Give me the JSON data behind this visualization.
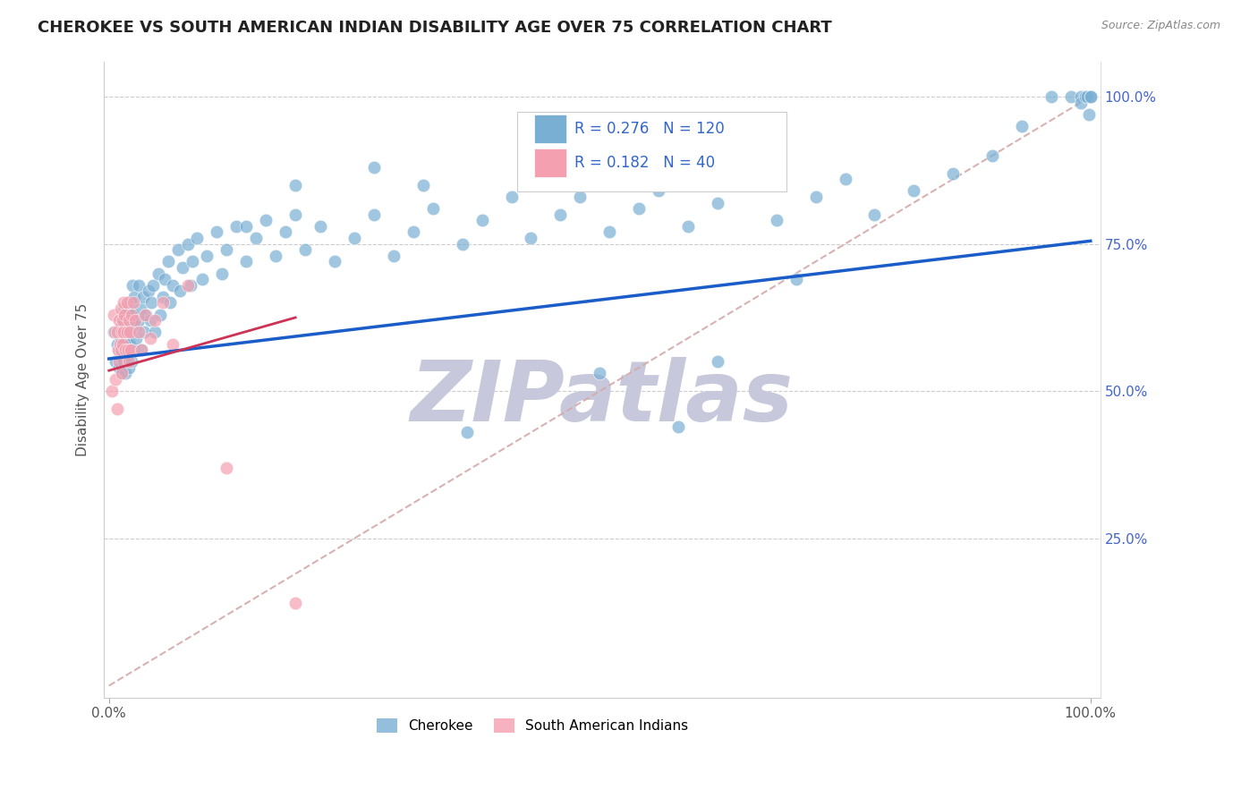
{
  "title": "CHEROKEE VS SOUTH AMERICAN INDIAN DISABILITY AGE OVER 75 CORRELATION CHART",
  "source": "Source: ZipAtlas.com",
  "ylabel": "Disability Age Over 75",
  "legend_cherokee_R": "0.276",
  "legend_cherokee_N": "120",
  "legend_sam_R": "0.182",
  "legend_sam_N": "40",
  "cherokee_color": "#7AAFD4",
  "sam_color": "#F4A0B0",
  "cherokee_line_color": "#1A5DC8",
  "sam_line_color": "#CC3355",
  "diagonal_color": "#D4AAAA",
  "background_color": "#FFFFFF",
  "watermark_text": "ZIPatlas",
  "watermark_color": "#C8C8DC",
  "cherokee_x": [
    0.005,
    0.007,
    0.008,
    0.01,
    0.01,
    0.012,
    0.012,
    0.013,
    0.013,
    0.014,
    0.015,
    0.015,
    0.015,
    0.016,
    0.016,
    0.017,
    0.017,
    0.018,
    0.018,
    0.018,
    0.019,
    0.02,
    0.02,
    0.02,
    0.021,
    0.022,
    0.022,
    0.023,
    0.023,
    0.024,
    0.025,
    0.025,
    0.026,
    0.027,
    0.028,
    0.03,
    0.03,
    0.032,
    0.033,
    0.035,
    0.036,
    0.038,
    0.04,
    0.042,
    0.043,
    0.045,
    0.047,
    0.05,
    0.052,
    0.055,
    0.057,
    0.06,
    0.062,
    0.065,
    0.07,
    0.072,
    0.075,
    0.08,
    0.083,
    0.085,
    0.09,
    0.095,
    0.1,
    0.11,
    0.115,
    0.12,
    0.13,
    0.14,
    0.15,
    0.16,
    0.17,
    0.18,
    0.19,
    0.2,
    0.215,
    0.23,
    0.25,
    0.27,
    0.29,
    0.31,
    0.33,
    0.36,
    0.38,
    0.41,
    0.43,
    0.46,
    0.48,
    0.51,
    0.54,
    0.56,
    0.59,
    0.62,
    0.65,
    0.68,
    0.72,
    0.75,
    0.78,
    0.82,
    0.86,
    0.9,
    0.93,
    0.96,
    0.98,
    0.99,
    0.99,
    0.995,
    0.997,
    0.998,
    1.0,
    1.0,
    0.365,
    0.27,
    0.5,
    0.58,
    0.62,
    0.7,
    0.45,
    0.32,
    0.19,
    0.14
  ],
  "cherokee_y": [
    0.6,
    0.55,
    0.58,
    0.57,
    0.54,
    0.59,
    0.56,
    0.61,
    0.53,
    0.58,
    0.62,
    0.55,
    0.59,
    0.57,
    0.64,
    0.6,
    0.53,
    0.61,
    0.56,
    0.64,
    0.58,
    0.6,
    0.54,
    0.63,
    0.58,
    0.65,
    0.6,
    0.62,
    0.55,
    0.68,
    0.63,
    0.57,
    0.66,
    0.61,
    0.59,
    0.68,
    0.62,
    0.64,
    0.57,
    0.66,
    0.6,
    0.63,
    0.67,
    0.62,
    0.65,
    0.68,
    0.6,
    0.7,
    0.63,
    0.66,
    0.69,
    0.72,
    0.65,
    0.68,
    0.74,
    0.67,
    0.71,
    0.75,
    0.68,
    0.72,
    0.76,
    0.69,
    0.73,
    0.77,
    0.7,
    0.74,
    0.78,
    0.72,
    0.76,
    0.79,
    0.73,
    0.77,
    0.8,
    0.74,
    0.78,
    0.72,
    0.76,
    0.8,
    0.73,
    0.77,
    0.81,
    0.75,
    0.79,
    0.83,
    0.76,
    0.8,
    0.83,
    0.77,
    0.81,
    0.84,
    0.78,
    0.82,
    0.85,
    0.79,
    0.83,
    0.86,
    0.8,
    0.84,
    0.87,
    0.9,
    0.95,
    1.0,
    1.0,
    1.0,
    0.99,
    1.0,
    1.0,
    0.97,
    1.0,
    1.0,
    0.43,
    0.88,
    0.53,
    0.44,
    0.55,
    0.69,
    0.87,
    0.85,
    0.85,
    0.78
  ],
  "sam_x": [
    0.003,
    0.005,
    0.006,
    0.007,
    0.008,
    0.008,
    0.009,
    0.01,
    0.01,
    0.011,
    0.012,
    0.012,
    0.013,
    0.013,
    0.014,
    0.014,
    0.015,
    0.015,
    0.016,
    0.017,
    0.018,
    0.018,
    0.019,
    0.02,
    0.02,
    0.021,
    0.022,
    0.023,
    0.025,
    0.027,
    0.03,
    0.033,
    0.037,
    0.042,
    0.047,
    0.055,
    0.065,
    0.08,
    0.12,
    0.19
  ],
  "sam_y": [
    0.5,
    0.63,
    0.6,
    0.52,
    0.47,
    0.6,
    0.57,
    0.62,
    0.55,
    0.58,
    0.64,
    0.57,
    0.6,
    0.53,
    0.62,
    0.58,
    0.65,
    0.6,
    0.63,
    0.57,
    0.65,
    0.6,
    0.57,
    0.62,
    0.55,
    0.6,
    0.57,
    0.63,
    0.65,
    0.62,
    0.6,
    0.57,
    0.63,
    0.59,
    0.62,
    0.65,
    0.58,
    0.68,
    0.37,
    0.14
  ],
  "cherokee_line_x": [
    0.0,
    1.0
  ],
  "cherokee_line_y": [
    0.555,
    0.755
  ],
  "sam_line_x": [
    0.0,
    0.19
  ],
  "sam_line_y": [
    0.535,
    0.625
  ],
  "xlim": [
    0.0,
    1.0
  ],
  "ylim": [
    0.0,
    1.0
  ],
  "y_ticks": [
    0.25,
    0.5,
    0.75,
    1.0
  ],
  "y_tick_labels": [
    "25.0%",
    "50.0%",
    "75.0%",
    "100.0%"
  ]
}
